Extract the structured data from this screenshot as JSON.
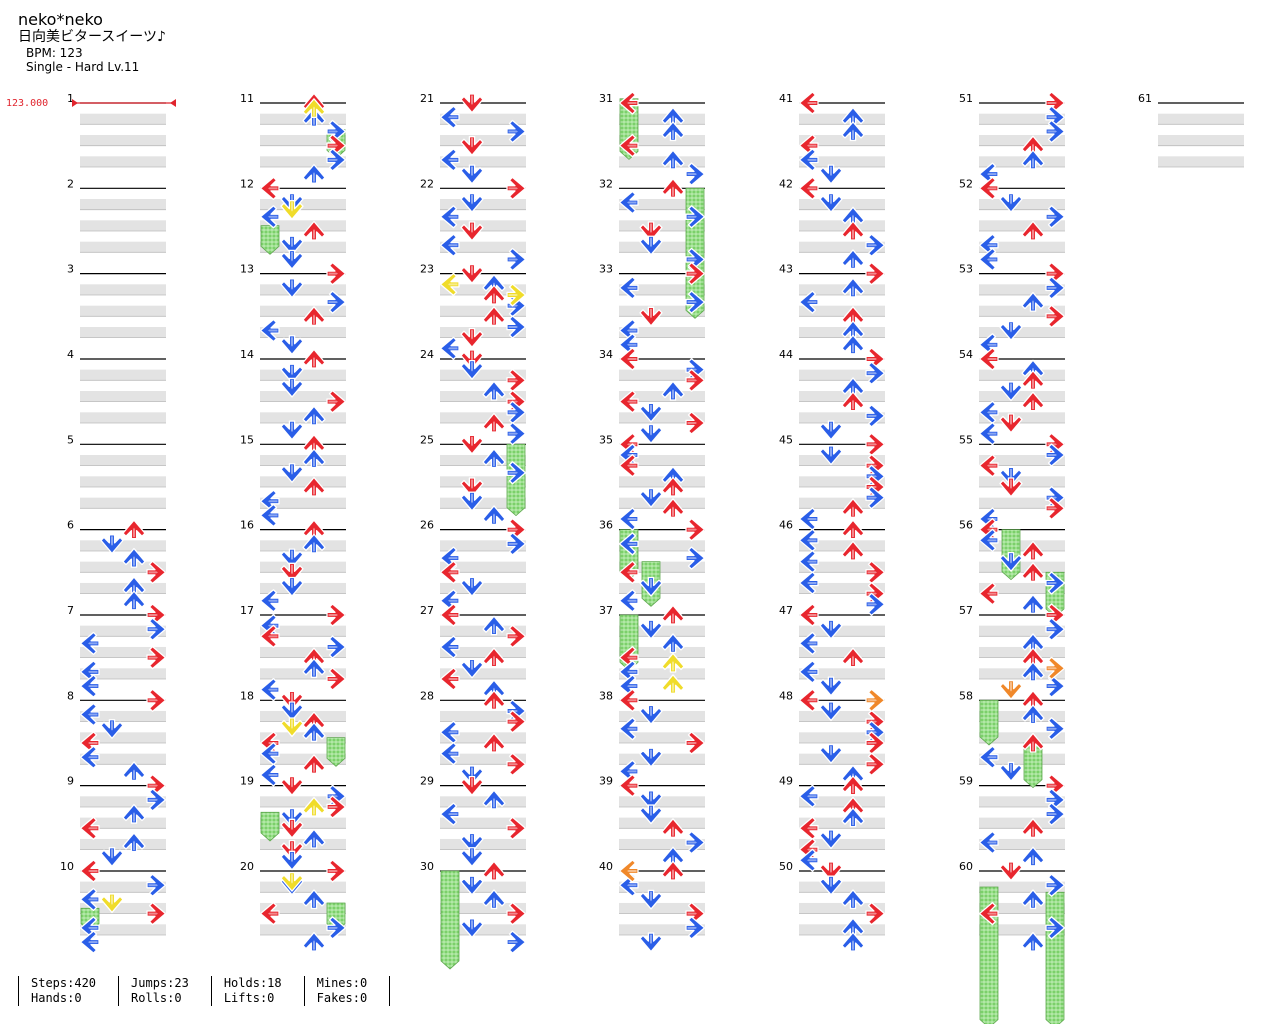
{
  "song": {
    "title": "neko*neko",
    "subtitle": "日向美ビタースイーツ♪",
    "bpm_label": "BPM: 123",
    "chart_label": "Single - Hard  Lv.11"
  },
  "colors": {
    "left": "#e8262e",
    "down": "#2a5ee8",
    "up": "#e8262e",
    "right": "#e8262e",
    "blue": "#2a5ee8",
    "yellow": "#f0dc2a",
    "orange": "#f0882a",
    "hold": "#7ed46c"
  },
  "chart_data": {
    "type": "step-chart",
    "bpm_marker": "123.000",
    "measures": [
      "1",
      "2",
      "3",
      "4",
      "5",
      "6",
      "7",
      "8",
      "9",
      "10",
      "11",
      "12",
      "13",
      "14",
      "15",
      "16",
      "17",
      "18",
      "19",
      "20",
      "21",
      "22",
      "23",
      "24",
      "25",
      "26",
      "27",
      "28",
      "29",
      "30",
      "31",
      "32",
      "33",
      "34",
      "35",
      "36",
      "37",
      "38",
      "39",
      "40",
      "41",
      "42",
      "43",
      "44",
      "45",
      "46",
      "47",
      "48",
      "49",
      "50",
      "51",
      "52",
      "53",
      "54",
      "55",
      "56",
      "57",
      "58",
      "59",
      "60",
      "61"
    ],
    "lanes": [
      "left",
      "down",
      "up",
      "right"
    ]
  },
  "stats": {
    "steps": "Steps:420",
    "hands": "Hands:0",
    "jumps": "Jumps:23",
    "rolls": "Rolls:0",
    "holds": "Holds:18",
    "lifts": "Lifts:0",
    "mines": "Mines:0",
    "fakes": "Fakes:0"
  }
}
